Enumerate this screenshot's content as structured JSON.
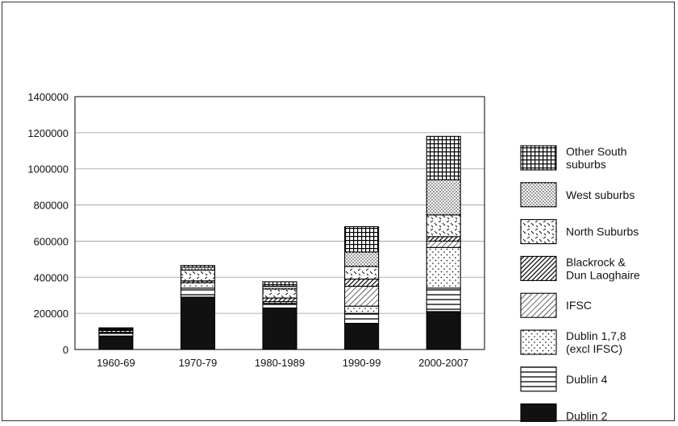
{
  "chart_data": {
    "type": "bar",
    "stacked": true,
    "categories": [
      "1960-69",
      "1970-79",
      "1980-1989",
      "1990-99",
      "2000-2007"
    ],
    "ylim": [
      0,
      1400000
    ],
    "yticks": [
      0,
      200000,
      400000,
      600000,
      800000,
      1000000,
      1200000,
      1400000
    ],
    "grid": true,
    "legend_position": "right",
    "series": [
      {
        "name": "Dublin 2",
        "pattern": "solid",
        "values": [
          75000,
          290000,
          230000,
          145000,
          210000
        ]
      },
      {
        "name": "Dublin 4",
        "pattern": "hlines",
        "values": [
          15000,
          50000,
          25000,
          55000,
          130000
        ]
      },
      {
        "name": "Dublin 1,7,8 (excl IFSC)",
        "pattern": "dots",
        "values": [
          5000,
          30000,
          10000,
          40000,
          225000
        ]
      },
      {
        "name": "IFSC",
        "pattern": "diag-light",
        "values": [
          0,
          0,
          0,
          110000,
          35000
        ]
      },
      {
        "name": "Blackrock & Dun Laoghaire",
        "pattern": "diag-dense",
        "values": [
          10000,
          10000,
          20000,
          40000,
          25000
        ]
      },
      {
        "name": "North Suburbs",
        "pattern": "dashes",
        "values": [
          5000,
          60000,
          50000,
          70000,
          120000
        ]
      },
      {
        "name": "West suburbs",
        "pattern": "fine-dots",
        "values": [
          5000,
          15000,
          15000,
          80000,
          195000
        ]
      },
      {
        "name": "Other South suburbs",
        "pattern": "grid",
        "values": [
          5000,
          10000,
          25000,
          140000,
          240000
        ]
      }
    ],
    "legend": [
      [
        "Other South",
        "suburbs"
      ],
      [
        "West suburbs"
      ],
      [
        "North Suburbs"
      ],
      [
        "Blackrock &",
        "Dun Laoghaire"
      ],
      [
        "IFSC"
      ],
      [
        "Dublin 1,7,8",
        "(excl IFSC)"
      ],
      [
        "Dublin 4"
      ],
      [
        "Dublin 2"
      ]
    ]
  }
}
